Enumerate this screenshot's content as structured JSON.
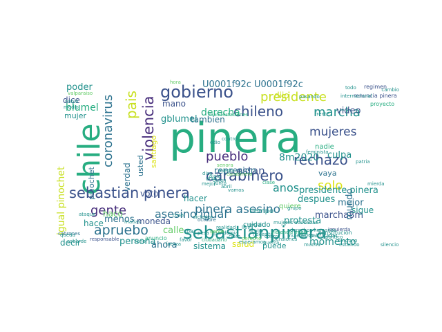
{
  "wordcloud": {
    "colors": {
      "purple": "#472d7b",
      "indigo": "#3b528b",
      "blue": "#2c728e",
      "teal": "#21918c",
      "green": "#27ad81",
      "lime": "#5ec962",
      "yellow": "#c8e020",
      "gold": "#dde318"
    },
    "words": [
      {
        "text": "pinera",
        "color": "green"
      },
      {
        "text": "chile",
        "color": "green"
      },
      {
        "text": "sebastianpinera",
        "color": "teal"
      },
      {
        "text": "gobierno",
        "color": "indigo"
      },
      {
        "text": "sebastian pinera",
        "color": "indigo"
      },
      {
        "text": "carabinero",
        "color": "indigo"
      },
      {
        "text": "presidente",
        "color": "yellow"
      },
      {
        "text": "chileno",
        "color": "indigo"
      },
      {
        "text": "violencia",
        "color": "purple"
      },
      {
        "text": "marcha",
        "color": "teal"
      },
      {
        "text": "pinera asesino",
        "color": "blue"
      },
      {
        "text": "apruebo",
        "color": "blue"
      },
      {
        "text": "rechazo",
        "color": "indigo"
      },
      {
        "text": "pueblo",
        "color": "purple"
      },
      {
        "text": "mujeres",
        "color": "indigo"
      },
      {
        "text": "solo",
        "color": "gold"
      },
      {
        "text": "gente",
        "color": "purple"
      },
      {
        "text": "coronavirus",
        "color": "blue"
      },
      {
        "text": "pais",
        "color": "yellow"
      },
      {
        "text": "asesino igual",
        "color": "blue"
      },
      {
        "text": "U0001f92c U0001f92c",
        "color": "blue"
      },
      {
        "text": "8m2020",
        "color": "teal"
      },
      {
        "text": "anos",
        "color": "teal"
      },
      {
        "text": "estan",
        "color": "indigo"
      },
      {
        "text": "derecha",
        "color": "green"
      },
      {
        "text": "blumel",
        "color": "green"
      },
      {
        "text": "gblumel",
        "color": "teal"
      },
      {
        "text": "tambien",
        "color": "blue"
      },
      {
        "text": "igual pinochet",
        "color": "yellow"
      },
      {
        "text": "pinochet",
        "color": "blue"
      },
      {
        "text": "represion",
        "color": "blue"
      },
      {
        "text": "presidente pinera",
        "color": "teal"
      },
      {
        "text": "despues",
        "color": "teal"
      },
      {
        "text": "mejor",
        "color": "blue"
      },
      {
        "text": "culpa",
        "color": "teal"
      },
      {
        "text": "video",
        "color": "indigo"
      },
      {
        "text": "marcha8m",
        "color": "indigo"
      },
      {
        "text": "protesta",
        "color": "teal"
      },
      {
        "text": "mundo",
        "color": "blue"
      },
      {
        "text": "momento",
        "color": "teal"
      },
      {
        "text": "calle",
        "color": "lime"
      },
      {
        "text": "moneda",
        "color": "indigo"
      },
      {
        "text": "persona",
        "color": "teal"
      },
      {
        "text": "ahora",
        "color": "blue"
      },
      {
        "text": "sistema",
        "color": "teal"
      },
      {
        "text": "salud",
        "color": "gold"
      },
      {
        "text": "puede",
        "color": "teal"
      },
      {
        "text": "poder",
        "color": "teal"
      },
      {
        "text": "dice",
        "color": "indigo"
      },
      {
        "text": "mujer",
        "color": "teal"
      },
      {
        "text": "mano",
        "color": "indigo"
      },
      {
        "text": "dijo",
        "color": "yellow"
      },
      {
        "text": "sigue",
        "color": "teal"
      },
      {
        "text": "hace",
        "color": "teal"
      },
      {
        "text": "hacer",
        "color": "teal"
      },
      {
        "text": "voto",
        "color": "indigo"
      },
      {
        "text": "menos",
        "color": "blue"
      },
      {
        "text": "haco",
        "color": "lime"
      },
      {
        "text": "decir",
        "color": "teal"
      },
      {
        "text": "verdad",
        "color": "blue"
      },
      {
        "text": "usted",
        "color": "blue"
      },
      {
        "text": "santiago",
        "color": "gold"
      },
      {
        "text": "vaya",
        "color": "blue"
      },
      {
        "text": "cuidado",
        "color": "teal"
      },
      {
        "text": "quiere",
        "color": "lime"
      },
      {
        "text": "tiempo",
        "color": "teal"
      },
      {
        "text": "nadie",
        "color": "green"
      },
      {
        "text": "renuncia pinera",
        "color": "indigo"
      },
      {
        "text": "regimen",
        "color": "indigo"
      },
      {
        "text": "internacional",
        "color": "teal"
      },
      {
        "text": "mujeres abusadas",
        "color": "teal"
      },
      {
        "text": "politico",
        "color": "teal"
      },
      {
        "text": "frente",
        "color": "teal"
      },
      {
        "text": "feminista",
        "color": "teal"
      },
      {
        "text": "octubre",
        "color": "blue"
      },
      {
        "text": "matias",
        "color": "teal"
      },
      {
        "text": "ataque",
        "color": "teal"
      },
      {
        "text": "responsable",
        "color": "indigo"
      },
      {
        "text": "anuncio",
        "color": "green"
      },
      {
        "text": "seguir",
        "color": "teal"
      },
      {
        "text": "mucha",
        "color": "teal"
      },
      {
        "text": "izquierda",
        "color": "indigo"
      },
      {
        "text": "cabrones",
        "color": "blue"
      },
      {
        "text": "queda",
        "color": "teal"
      },
      {
        "text": "manifestaciones",
        "color": "green"
      },
      {
        "text": "violencia mujer",
        "color": "green"
      },
      {
        "text": "constitucion",
        "color": "teal"
      },
      {
        "text": "proyecto",
        "color": "green"
      },
      {
        "text": "patria",
        "color": "teal"
      },
      {
        "text": "mierda",
        "color": "teal"
      },
      {
        "text": "hora",
        "color": "lime"
      },
      {
        "text": "nunca",
        "color": "teal"
      },
      {
        "text": "todo",
        "color": "teal"
      },
      {
        "text": "pasando",
        "color": "teal"
      },
      {
        "text": "ninguno",
        "color": "teal"
      },
      {
        "text": "cambio",
        "color": "teal"
      },
      {
        "text": "valparaiso",
        "color": "lime"
      },
      {
        "text": "mujeres maltratadas",
        "color": "teal"
      },
      {
        "text": "derechos humanos",
        "color": "teal"
      },
      {
        "text": "silencio",
        "color": "teal"
      },
      {
        "text": "estallido",
        "color": "teal"
      },
      {
        "text": "cobarde",
        "color": "teal"
      },
      {
        "text": "nabio",
        "color": "teal"
      },
      {
        "text": "medio",
        "color": "teal"
      },
      {
        "text": "paz",
        "color": "teal"
      },
      {
        "text": "cosa",
        "color": "teal"
      },
      {
        "text": "senora",
        "color": "lime"
      },
      {
        "text": "contra",
        "color": "teal"
      },
      {
        "text": "dictador",
        "color": "teal"
      },
      {
        "text": "fuerza",
        "color": "teal"
      },
      {
        "text": "esperamos",
        "color": "teal"
      },
      {
        "text": "pandemia",
        "color": "teal"
      },
      {
        "text": "senor",
        "color": "teal"
      },
      {
        "text": "ciudadano",
        "color": "green"
      },
      {
        "text": "clase",
        "color": "green"
      },
      {
        "text": "odio",
        "color": "teal"
      },
      {
        "text": "grupo",
        "color": "teal"
      },
      {
        "text": "control",
        "color": "teal"
      },
      {
        "text": "acaba",
        "color": "teal"
      },
      {
        "text": "necesita",
        "color": "teal"
      },
      {
        "text": "realidad",
        "color": "teal"
      },
      {
        "text": "derecho",
        "color": "lime"
      },
      {
        "text": "guerra",
        "color": "teal"
      },
      {
        "text": "pensiones",
        "color": "teal"
      },
      {
        "text": "pesa",
        "color": "teal"
      },
      {
        "text": "favor",
        "color": "teal"
      },
      {
        "text": "gente",
        "color": "lime"
      },
      {
        "text": "claro",
        "color": "teal"
      },
      {
        "text": "lleva",
        "color": "teal"
      },
      {
        "text": "miedo",
        "color": "teal"
      },
      {
        "text": "carabinero",
        "color": "lime"
      },
      {
        "text": "dias",
        "color": "teal"
      },
      {
        "text": "ojala",
        "color": "teal"
      },
      {
        "text": "gran",
        "color": "teal"
      },
      {
        "text": "quien",
        "color": "teal"
      },
      {
        "text": "junto",
        "color": "teal"
      },
      {
        "text": "mejor",
        "color": "teal"
      },
      {
        "text": "abril",
        "color": "teal"
      },
      {
        "text": "vamos",
        "color": "teal"
      }
    ]
  }
}
